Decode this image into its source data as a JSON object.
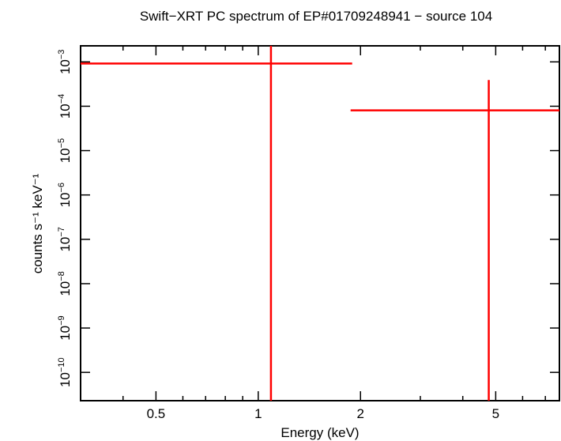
{
  "chart_data": {
    "type": "errorbar",
    "title": "Swift−XRT PC spectrum of EP#01709248941 − source 104",
    "x_label": "Energy (keV)",
    "y_label": "counts s⁻¹ keV⁻¹",
    "log_x": true,
    "log_y": true,
    "xlim": [
      0.3,
      7.7
    ],
    "ylim": [
      2.3e-11,
      0.0023
    ],
    "xticks": [
      0.5,
      1,
      2,
      5
    ],
    "xminorticks": [
      0.3,
      0.4,
      0.6,
      0.7,
      0.8,
      0.9,
      3,
      4,
      6,
      7
    ],
    "yticks": [
      {
        "value": 1e-10,
        "label": "10",
        "exponent": "−10"
      },
      {
        "value": 1e-09,
        "label": "10",
        "exponent": "−9"
      },
      {
        "value": 1e-08,
        "label": "10",
        "exponent": "−8"
      },
      {
        "value": 1e-07,
        "label": "10",
        "exponent": "−7"
      },
      {
        "value": 1e-06,
        "label": "10",
        "exponent": "−6"
      },
      {
        "value": 1e-05,
        "label": "10",
        "exponent": "−5"
      },
      {
        "value": 0.0001,
        "label": "10",
        "exponent": "−4"
      },
      {
        "value": 0.001,
        "label": "10",
        "exponent": "−3"
      }
    ],
    "series": [
      {
        "color": "#ff0000",
        "x": [
          1.09,
          4.77
        ],
        "x_low": [
          0.3,
          1.87
        ],
        "x_high": [
          1.89,
          7.7
        ],
        "values": [
          0.00092,
          8.1e-05
        ],
        "y_low": [
          0,
          0
        ],
        "y_high": [
          0.0023,
          0.00039
        ]
      }
    ]
  }
}
